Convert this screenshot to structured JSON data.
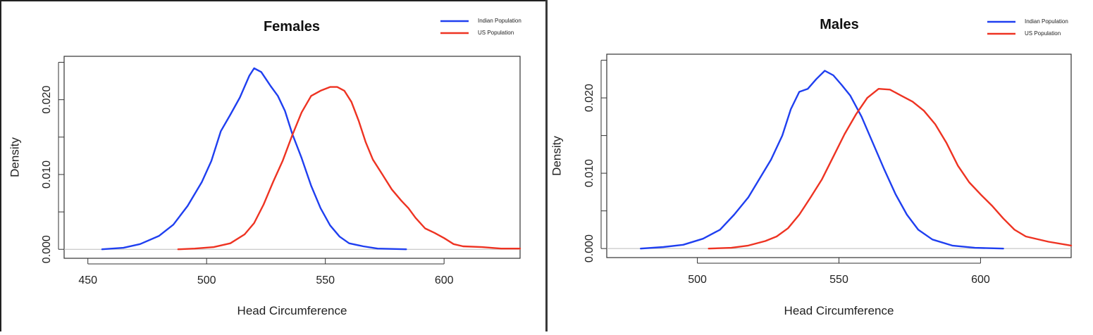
{
  "chart_data": [
    {
      "type": "line",
      "title": "Females",
      "xlabel": "Head Circumference",
      "ylabel": "Density",
      "xlim": [
        440,
        632
      ],
      "ylim": [
        -0.0012,
        0.0258
      ],
      "xticks": [
        450,
        500,
        550,
        600
      ],
      "xtick_labels": [
        "450",
        "500",
        "550",
        "600"
      ],
      "yticks": [
        0.0,
        0.005,
        0.01,
        0.015,
        0.02,
        0.025
      ],
      "ytick_labels": [
        "0.000",
        "",
        "0.010",
        "",
        "0.020",
        ""
      ],
      "legend_position": "top-right",
      "series": [
        {
          "name": "Indian Population",
          "color": "#1f3ff0",
          "points": [
            [
              456,
              0.0
            ],
            [
              465,
              0.0002
            ],
            [
              472,
              0.0007
            ],
            [
              480,
              0.0018
            ],
            [
              486,
              0.0033
            ],
            [
              492,
              0.0058
            ],
            [
              498,
              0.009
            ],
            [
              502,
              0.0118
            ],
            [
              506,
              0.0158
            ],
            [
              510,
              0.018
            ],
            [
              514,
              0.0203
            ],
            [
              518,
              0.0232
            ],
            [
              520,
              0.0242
            ],
            [
              523,
              0.0237
            ],
            [
              527,
              0.0218
            ],
            [
              530,
              0.0205
            ],
            [
              533,
              0.0185
            ],
            [
              536,
              0.0155
            ],
            [
              540,
              0.0122
            ],
            [
              544,
              0.0085
            ],
            [
              548,
              0.0055
            ],
            [
              552,
              0.0032
            ],
            [
              556,
              0.0017
            ],
            [
              560,
              0.0008
            ],
            [
              566,
              0.0004
            ],
            [
              572,
              0.0001
            ],
            [
              584,
              0.0
            ]
          ]
        },
        {
          "name": "US Population",
          "color": "#ee3322",
          "points": [
            [
              488,
              0.0
            ],
            [
              495,
              0.0001
            ],
            [
              503,
              0.0003
            ],
            [
              510,
              0.0008
            ],
            [
              516,
              0.002
            ],
            [
              520,
              0.0035
            ],
            [
              524,
              0.006
            ],
            [
              528,
              0.009
            ],
            [
              532,
              0.0118
            ],
            [
              536,
              0.0152
            ],
            [
              540,
              0.0183
            ],
            [
              544,
              0.0205
            ],
            [
              548,
              0.0212
            ],
            [
              552,
              0.0217
            ],
            [
              555,
              0.0217
            ],
            [
              558,
              0.0212
            ],
            [
              561,
              0.0197
            ],
            [
              564,
              0.0172
            ],
            [
              567,
              0.0143
            ],
            [
              570,
              0.012
            ],
            [
              574,
              0.01
            ],
            [
              578,
              0.008
            ],
            [
              582,
              0.0065
            ],
            [
              585,
              0.0055
            ],
            [
              588,
              0.0042
            ],
            [
              592,
              0.0028
            ],
            [
              596,
              0.0022
            ],
            [
              600,
              0.0015
            ],
            [
              604,
              0.0007
            ],
            [
              608,
              0.0004
            ],
            [
              616,
              0.0003
            ],
            [
              624,
              0.0001
            ],
            [
              632,
              0.0001
            ]
          ]
        }
      ]
    },
    {
      "type": "line",
      "title": "Males",
      "xlabel": "Head Circumference",
      "ylabel": "Density",
      "xlim": [
        468,
        632
      ],
      "ylim": [
        -0.0012,
        0.0258
      ],
      "xticks": [
        500,
        550,
        600
      ],
      "xtick_labels": [
        "500",
        "550",
        "600"
      ],
      "yticks": [
        0.0,
        0.005,
        0.01,
        0.015,
        0.02,
        0.025
      ],
      "ytick_labels": [
        "0.000",
        "",
        "0.010",
        "",
        "0.020",
        ""
      ],
      "legend_position": "top-right",
      "series": [
        {
          "name": "Indian Population",
          "color": "#1f3ff0",
          "points": [
            [
              480,
              0.0
            ],
            [
              488,
              0.0002
            ],
            [
              495,
              0.0005
            ],
            [
              502,
              0.0013
            ],
            [
              508,
              0.0025
            ],
            [
              513,
              0.0045
            ],
            [
              518,
              0.0068
            ],
            [
              522,
              0.0093
            ],
            [
              526,
              0.0118
            ],
            [
              530,
              0.015
            ],
            [
              533,
              0.0185
            ],
            [
              536,
              0.0208
            ],
            [
              539,
              0.0212
            ],
            [
              542,
              0.0225
            ],
            [
              545,
              0.0236
            ],
            [
              548,
              0.023
            ],
            [
              551,
              0.0217
            ],
            [
              554,
              0.0203
            ],
            [
              558,
              0.0175
            ],
            [
              562,
              0.014
            ],
            [
              566,
              0.0105
            ],
            [
              570,
              0.0072
            ],
            [
              574,
              0.0045
            ],
            [
              578,
              0.0025
            ],
            [
              583,
              0.0012
            ],
            [
              590,
              0.0004
            ],
            [
              598,
              0.0001
            ],
            [
              608,
              0.0
            ]
          ]
        },
        {
          "name": "US Population",
          "color": "#ee3322",
          "points": [
            [
              504,
              0.0
            ],
            [
              512,
              0.0001
            ],
            [
              518,
              0.0004
            ],
            [
              524,
              0.001
            ],
            [
              528,
              0.0016
            ],
            [
              532,
              0.0027
            ],
            [
              536,
              0.0045
            ],
            [
              540,
              0.0068
            ],
            [
              544,
              0.0092
            ],
            [
              548,
              0.0122
            ],
            [
              552,
              0.0152
            ],
            [
              556,
              0.0178
            ],
            [
              560,
              0.02
            ],
            [
              564,
              0.0212
            ],
            [
              568,
              0.0211
            ],
            [
              572,
              0.0203
            ],
            [
              576,
              0.0195
            ],
            [
              580,
              0.0183
            ],
            [
              584,
              0.0165
            ],
            [
              588,
              0.014
            ],
            [
              592,
              0.011
            ],
            [
              596,
              0.0088
            ],
            [
              600,
              0.0072
            ],
            [
              604,
              0.0057
            ],
            [
              608,
              0.004
            ],
            [
              612,
              0.0025
            ],
            [
              616,
              0.0016
            ],
            [
              624,
              0.0009
            ],
            [
              632,
              0.0004
            ]
          ]
        }
      ]
    }
  ]
}
